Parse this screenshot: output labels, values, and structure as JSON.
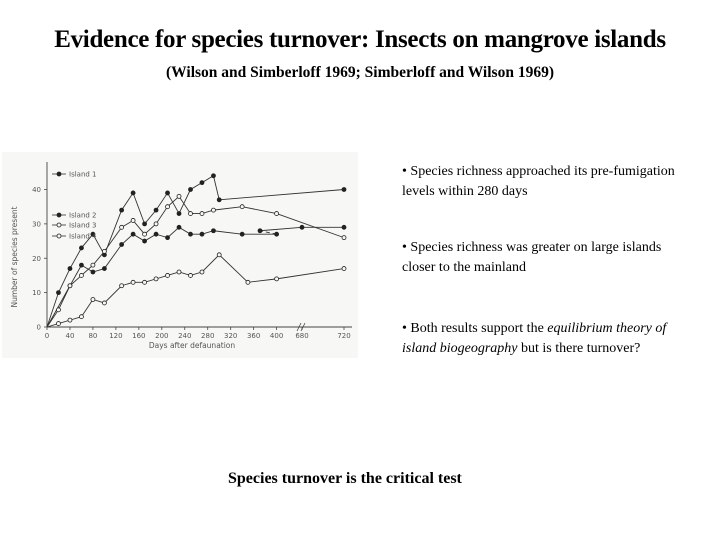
{
  "slide": {
    "title": "Evidence for species turnover: Insects on mangrove islands",
    "subtitle": "(Wilson and Simberloff 1969; Simberloff and Wilson 1969)",
    "bullets": [
      {
        "prefix": "• Species richness approached its pre-fumigation levels within 280 days",
        "em": "",
        "suffix": ""
      },
      {
        "prefix": "• Species richness was greater on large islands closer to the mainland",
        "em": "",
        "suffix": ""
      },
      {
        "prefix": "• Both results support the ",
        "em": "equilibrium theory of island biogeography",
        "suffix": " but is there turnover?"
      }
    ],
    "conclusion": "Species turnover is the critical test"
  },
  "chart_data": {
    "type": "line",
    "xlabel": "Days after defaunation",
    "ylabel": "Number of species present",
    "x_ticks": [
      "0",
      "40",
      "80",
      "120",
      "160",
      "200",
      "240",
      "280",
      "320",
      "360",
      "400",
      "680",
      "720"
    ],
    "y_ticks": [
      0,
      10,
      20,
      30,
      40
    ],
    "ylim": [
      0,
      48
    ],
    "x_axis_break_after": 400,
    "grid": false,
    "legend_position": "top-left",
    "series": [
      {
        "name": "Island 1",
        "marker": "filled",
        "x": [
          0,
          20,
          40,
          60,
          80,
          100,
          130,
          150,
          170,
          190,
          210,
          230,
          250,
          270,
          290,
          300,
          720
        ],
        "y": [
          0,
          10,
          17,
          23,
          27,
          21,
          34,
          39,
          30,
          34,
          39,
          33,
          40,
          42,
          44,
          37,
          40
        ]
      },
      {
        "name": "Island 2",
        "marker": "filled",
        "x": [
          0,
          40,
          60,
          80,
          100,
          130,
          150,
          170,
          190,
          210,
          230,
          250,
          270,
          290,
          340,
          400,
          640,
          680,
          720
        ],
        "y": [
          0,
          12,
          18,
          16,
          17,
          24,
          27,
          25,
          27,
          26,
          29,
          27,
          27,
          28,
          27,
          27,
          28,
          29,
          29
        ]
      },
      {
        "name": "Island 3",
        "marker": "open",
        "x": [
          0,
          20,
          40,
          60,
          80,
          100,
          130,
          150,
          170,
          190,
          210,
          230,
          250,
          270,
          290,
          340,
          400,
          720
        ],
        "y": [
          0,
          5,
          12,
          15,
          18,
          22,
          29,
          31,
          27,
          30,
          35,
          38,
          33,
          33,
          34,
          35,
          33,
          26
        ]
      },
      {
        "name": "Island 4",
        "marker": "open",
        "x": [
          0,
          20,
          40,
          60,
          80,
          100,
          130,
          150,
          170,
          190,
          210,
          230,
          250,
          270,
          300,
          350,
          400,
          720
        ],
        "y": [
          0,
          1,
          2,
          3,
          8,
          7,
          12,
          13,
          13,
          14,
          15,
          16,
          15,
          16,
          21,
          13,
          14,
          17
        ]
      }
    ]
  }
}
